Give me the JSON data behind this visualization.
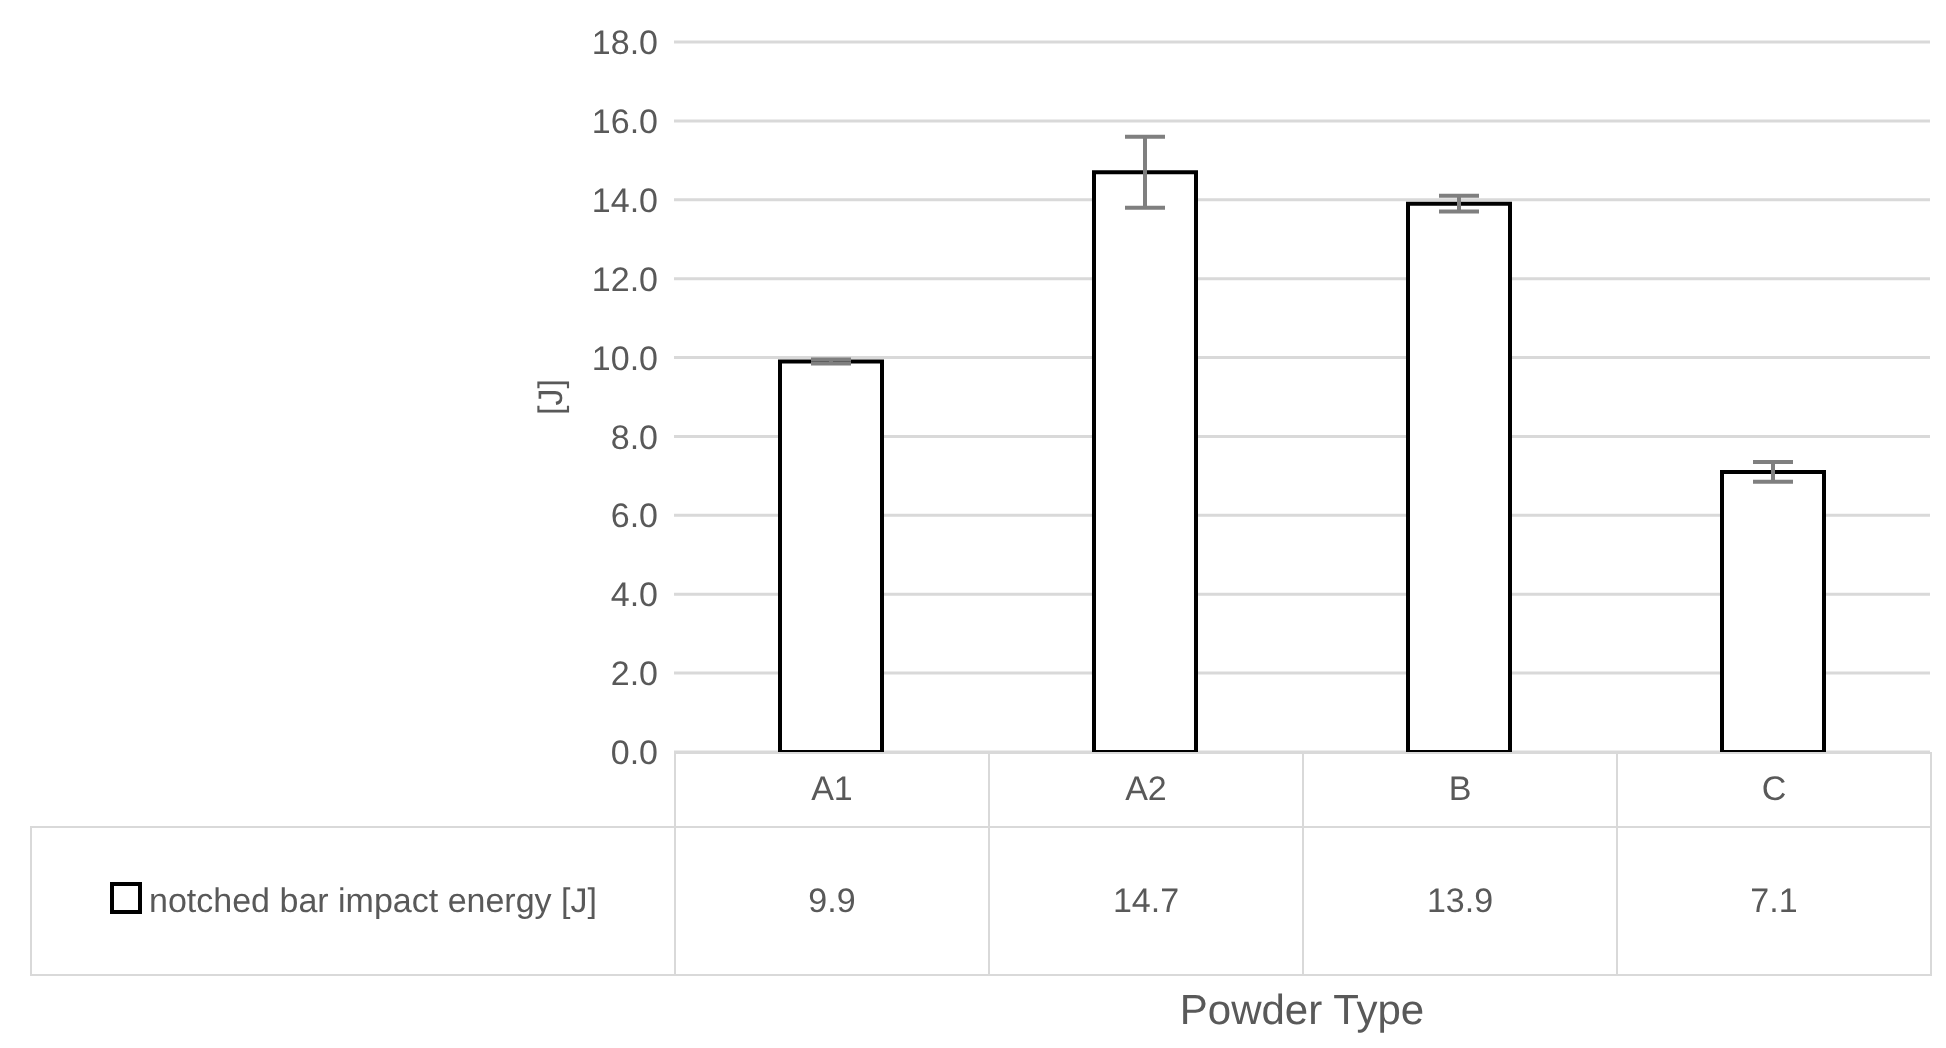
{
  "chart_data": {
    "type": "bar",
    "xlabel": "Powder Type",
    "ylabel": "[J]",
    "categories": [
      "A1",
      "A2",
      "B",
      "C"
    ],
    "series": [
      {
        "name": "notched bar impact energy [J]",
        "color": "#ffffff",
        "values": [
          9.9,
          14.7,
          13.9,
          7.1
        ],
        "errors": [
          0.05,
          0.9,
          0.2,
          0.25
        ]
      }
    ],
    "ylim": [
      0,
      18
    ],
    "yticks": [
      {
        "value": 0,
        "label": "0.0"
      },
      {
        "value": 2,
        "label": "2.0"
      },
      {
        "value": 4,
        "label": "4.0"
      },
      {
        "value": 6,
        "label": "6.0"
      },
      {
        "value": 8,
        "label": "8.0"
      },
      {
        "value": 10,
        "label": "10.0"
      },
      {
        "value": 12,
        "label": "12.0"
      },
      {
        "value": 14,
        "label": "14.0"
      },
      {
        "value": 16,
        "label": "16.0"
      },
      {
        "value": 18,
        "label": "18.0"
      }
    ],
    "grid": "y",
    "legend": "bottom",
    "data_labels": true
  }
}
